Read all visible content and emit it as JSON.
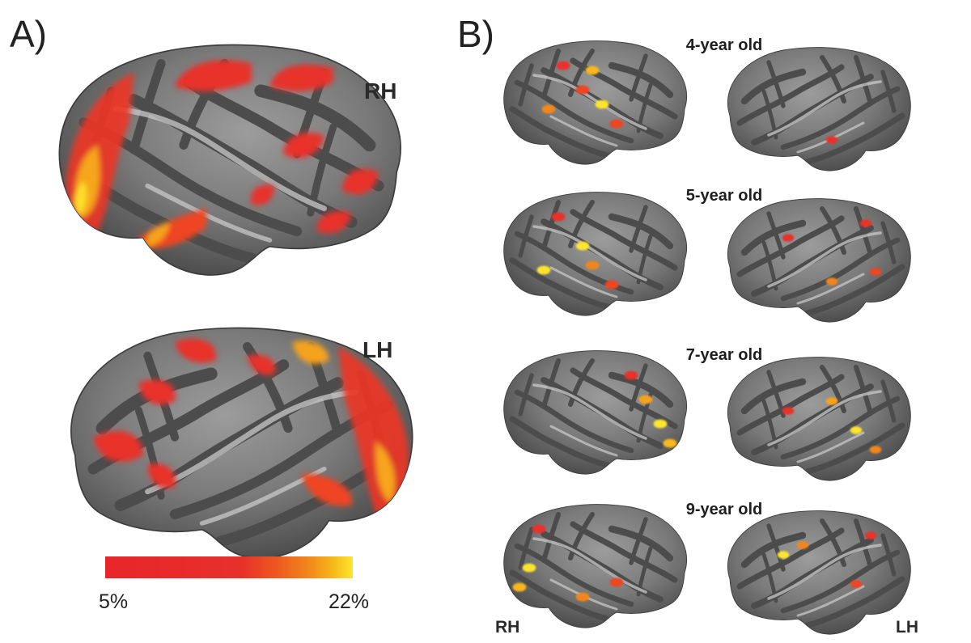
{
  "panel_a": {
    "letter": "A)",
    "hemispheres": [
      {
        "id": "rh",
        "label": "RH",
        "flip": true
      },
      {
        "id": "lh",
        "label": "LH",
        "flip": false
      }
    ]
  },
  "panel_b": {
    "letter": "B)",
    "rows": [
      {
        "label": "4-year old"
      },
      {
        "label": "5-year old"
      },
      {
        "label": "7-year old"
      },
      {
        "label": "9-year old"
      }
    ],
    "bottom_left_label": "RH",
    "bottom_right_label": "LH"
  },
  "colorbar": {
    "min_label": "5%",
    "max_label": "22%",
    "min_value": 5,
    "max_value": 22,
    "colors": [
      "#e8252b",
      "#ea3a27",
      "#ee5f20",
      "#f2861a",
      "#f6b016",
      "#fde52e"
    ]
  },
  "colors": {
    "cortex_dark": "#505050",
    "cortex_light": "#9a9a9a",
    "activation_low": "#e8252b",
    "activation_high": "#fde52e"
  }
}
